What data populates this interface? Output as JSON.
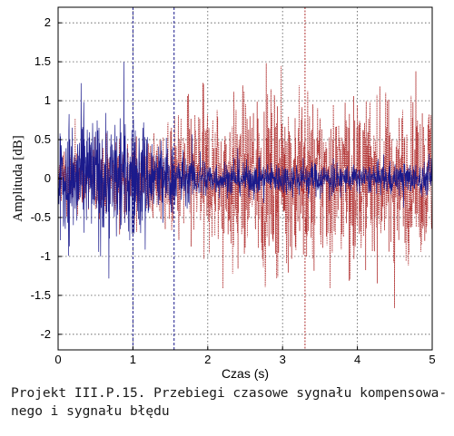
{
  "chart_data": {
    "type": "line",
    "title": "",
    "xlabel": "Czas (s)",
    "ylabel": "Amplituda [dB]",
    "xlim": [
      0,
      5
    ],
    "ylim": [
      -2.2,
      2.2
    ],
    "x_ticks": [
      0,
      1,
      2,
      3,
      4,
      5
    ],
    "y_ticks": [
      -2,
      -1.5,
      -1,
      -0.5,
      0,
      0.5,
      1,
      1.5,
      2
    ],
    "x_tick_labels": [
      "0",
      "1",
      "2",
      "3",
      "4",
      "5"
    ],
    "y_tick_labels": [
      "-2",
      "-1.5",
      "-1",
      "-0.5",
      "0",
      "0.5",
      "1",
      "1.5",
      "2"
    ],
    "grid": true,
    "legend": "none",
    "series": [
      {
        "style": "dotted",
        "color": "#b03030",
        "x": [
          0,
          0.5,
          1,
          1.5,
          1.6,
          2,
          2.5,
          3,
          3.5,
          4,
          4.5,
          5
        ],
        "envelope": [
          0.6,
          0.8,
          0.9,
          1.0,
          1.5,
          1.6,
          1.7,
          1.8,
          1.8,
          1.7,
          1.7,
          1.6
        ]
      },
      {
        "style": "solid",
        "color": "#1a1a8c",
        "x": [
          0,
          0.5,
          1,
          1.5,
          1.6,
          2,
          2.5,
          3,
          3.5,
          4,
          4.5,
          5
        ],
        "envelope": [
          1.4,
          1.4,
          1.3,
          0.8,
          0.6,
          0.4,
          0.35,
          0.35,
          0.35,
          0.3,
          0.35,
          0.35
        ]
      }
    ],
    "annotations": [
      {
        "type": "vertical-line",
        "x": 1.0
      },
      {
        "type": "vertical-line",
        "x": 1.55
      },
      {
        "type": "vertical-line",
        "x": 3.3
      }
    ],
    "colors": {
      "error": "#b03030",
      "compensated": "#1a1a8c"
    }
  },
  "caption": {
    "line1": "Projekt III.P.15. Przebiegi czasowe sygnału kompensowa-",
    "line2": "nego i sygnału błędu"
  }
}
